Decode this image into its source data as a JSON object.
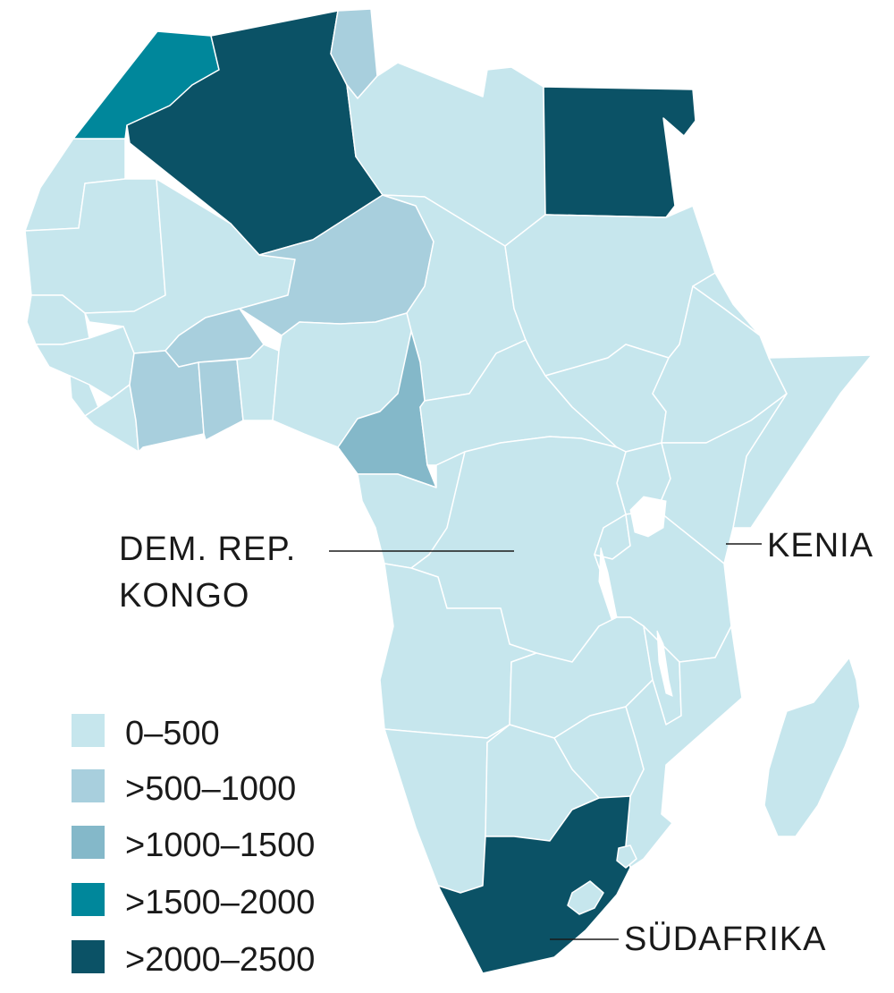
{
  "colors": {
    "bin0": "#c6e6ed",
    "bin1": "#a8cfdd",
    "bin2": "#84b8c9",
    "bin3": "#00879b",
    "bin4": "#0b5266",
    "lake": "#ffffff",
    "text": "#1a1a1a"
  },
  "legend": [
    {
      "label": "0–500",
      "color_key": "bin0"
    },
    {
      "label": ">500–1000",
      "color_key": "bin1"
    },
    {
      "label": ">1000–1500",
      "color_key": "bin2"
    },
    {
      "label": ">1500–2000",
      "color_key": "bin3"
    },
    {
      "label": ">2000–2500",
      "color_key": "bin4"
    }
  ],
  "labels": {
    "drc_line1": "DEM. REP.",
    "drc_line2": "KONGO",
    "kenya": "KENIA",
    "south_africa": "SÜDAFRIKA"
  },
  "regions": [
    {
      "id": "morocco",
      "bin": 3
    },
    {
      "id": "algeria",
      "bin": 4
    },
    {
      "id": "tunisia",
      "bin": 1
    },
    {
      "id": "libya",
      "bin": 0
    },
    {
      "id": "egypt",
      "bin": 4
    },
    {
      "id": "western-sahara",
      "bin": 0
    },
    {
      "id": "mauritania",
      "bin": 0
    },
    {
      "id": "mali",
      "bin": 0
    },
    {
      "id": "niger",
      "bin": 1
    },
    {
      "id": "chad",
      "bin": 0
    },
    {
      "id": "sudan",
      "bin": 0
    },
    {
      "id": "senegal",
      "bin": 0
    },
    {
      "id": "guinea",
      "bin": 0
    },
    {
      "id": "sierra-leone",
      "bin": 0
    },
    {
      "id": "liberia",
      "bin": 0
    },
    {
      "id": "ivory-coast",
      "bin": 1
    },
    {
      "id": "burkina-faso",
      "bin": 1
    },
    {
      "id": "ghana",
      "bin": 1
    },
    {
      "id": "togo-benin",
      "bin": 0
    },
    {
      "id": "nigeria",
      "bin": 0
    },
    {
      "id": "cameroon",
      "bin": 2
    },
    {
      "id": "car",
      "bin": 0
    },
    {
      "id": "south-sudan",
      "bin": 0
    },
    {
      "id": "ethiopia",
      "bin": 0
    },
    {
      "id": "eritrea",
      "bin": 0
    },
    {
      "id": "somalia",
      "bin": 0
    },
    {
      "id": "gabon-congo",
      "bin": 0
    },
    {
      "id": "drc",
      "bin": 0
    },
    {
      "id": "uganda",
      "bin": 0
    },
    {
      "id": "kenya",
      "bin": 0
    },
    {
      "id": "rwanda-burundi",
      "bin": 0
    },
    {
      "id": "tanzania",
      "bin": 0
    },
    {
      "id": "angola",
      "bin": 0
    },
    {
      "id": "zambia",
      "bin": 0
    },
    {
      "id": "malawi",
      "bin": 0
    },
    {
      "id": "mozambique",
      "bin": 0
    },
    {
      "id": "zimbabwe",
      "bin": 0
    },
    {
      "id": "namibia",
      "bin": 0
    },
    {
      "id": "botswana",
      "bin": 0
    },
    {
      "id": "south-africa",
      "bin": 4
    },
    {
      "id": "lesotho",
      "bin": 0
    },
    {
      "id": "eswatini",
      "bin": 0
    },
    {
      "id": "madagascar",
      "bin": 0
    }
  ]
}
